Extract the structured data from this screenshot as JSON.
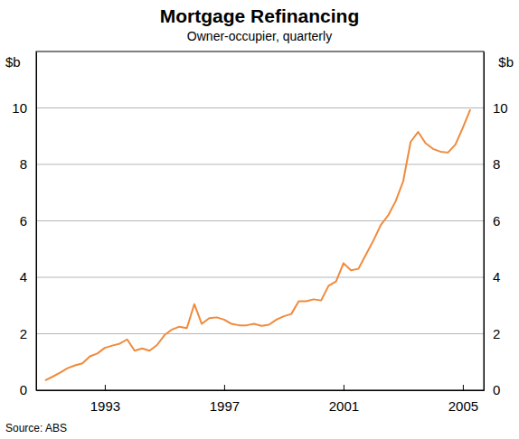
{
  "chart_data": {
    "type": "line",
    "title": "Mortgage Refinancing",
    "subtitle": "Owner-occupier, quarterly",
    "ylabel": "$b",
    "source": "Source: ABS",
    "x": [
      1991,
      1991.25,
      1991.5,
      1991.75,
      1992,
      1992.25,
      1992.5,
      1992.75,
      1993,
      1993.25,
      1993.5,
      1993.75,
      1994,
      1994.25,
      1994.5,
      1994.75,
      1995,
      1995.25,
      1995.5,
      1995.75,
      1996,
      1996.25,
      1996.5,
      1996.75,
      1997,
      1997.25,
      1997.5,
      1997.75,
      1998,
      1998.25,
      1998.5,
      1998.75,
      1999,
      1999.25,
      1999.5,
      1999.75,
      2000,
      2000.25,
      2000.5,
      2000.75,
      2001,
      2001.25,
      2001.5,
      2001.75,
      2002,
      2002.25,
      2002.5,
      2002.75,
      2003,
      2003.25,
      2003.5,
      2003.75,
      2004,
      2004.25,
      2004.5,
      2004.75,
      2005,
      2005.25
    ],
    "series": [
      {
        "name": "Owner-occupier",
        "color": "#f08a3c",
        "values": [
          0.35,
          0.48,
          0.62,
          0.78,
          0.88,
          0.95,
          1.2,
          1.3,
          1.5,
          1.58,
          1.65,
          1.8,
          1.4,
          1.48,
          1.4,
          1.6,
          1.95,
          2.15,
          2.25,
          2.2,
          3.05,
          2.35,
          2.55,
          2.58,
          2.5,
          2.35,
          2.3,
          2.3,
          2.35,
          2.28,
          2.32,
          2.5,
          2.62,
          2.7,
          3.15,
          3.15,
          3.22,
          3.18,
          3.7,
          3.85,
          4.5,
          4.25,
          4.3,
          4.8,
          5.3,
          5.85,
          6.2,
          6.7,
          7.4,
          8.8,
          9.15,
          8.75,
          8.55,
          8.45,
          8.42,
          8.7,
          9.3,
          9.95
        ]
      }
    ],
    "xlim": [
      1990.7,
      2005.7
    ],
    "xticks": [
      1993,
      1997,
      2001,
      2005
    ],
    "ylim": [
      0,
      12
    ],
    "yticks": [
      0,
      2,
      4,
      6,
      8,
      10
    ],
    "grid": true
  }
}
